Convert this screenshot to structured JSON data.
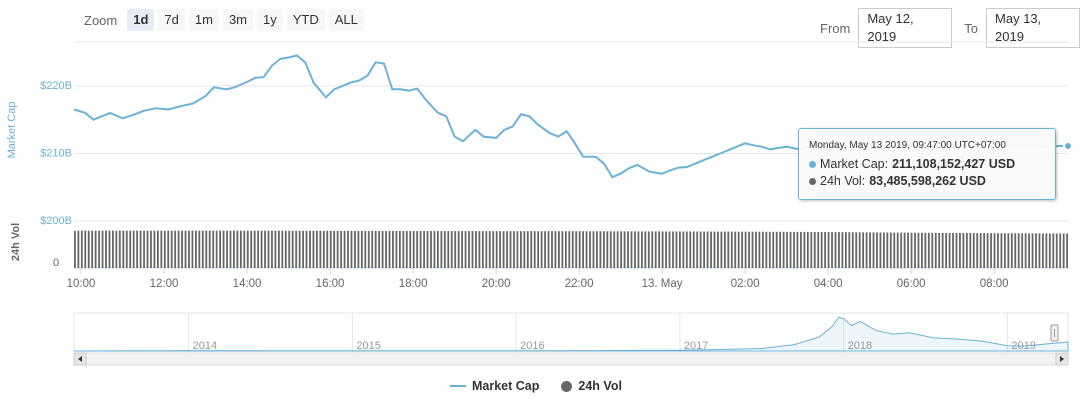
{
  "zoom": {
    "label": "Zoom",
    "buttons": [
      "1d",
      "7d",
      "1m",
      "3m",
      "1y",
      "YTD",
      "ALL"
    ],
    "active": "1d"
  },
  "range": {
    "from_label": "From",
    "from_value": "May 12, 2019",
    "to_label": "To",
    "to_value": "May 13, 2019"
  },
  "tooltip": {
    "date": "Monday, May 13 2019, 09:47:00 UTC+07:00",
    "market_cap_label": "Market Cap:",
    "market_cap_value": "211,108,152,427 USD",
    "volume_label": "24h Vol:",
    "volume_value": "83,485,598,262 USD"
  },
  "legend": {
    "market_cap": "Market Cap",
    "volume": "24h Vol"
  },
  "colors": {
    "market_cap": "#6cb2d6",
    "volume": "#666666"
  },
  "chart_data": {
    "type": "line",
    "ylabel": "Market Cap",
    "ylabel2": "24h Vol",
    "yticks": [
      "$220B",
      "$210B",
      "$200B"
    ],
    "ytick_values": [
      220,
      210,
      200
    ],
    "vol_ytick": "0",
    "ylim": [
      200,
      226.5
    ],
    "xticks": [
      "10:00",
      "12:00",
      "14:00",
      "16:00",
      "18:00",
      "20:00",
      "22:00",
      "13. May",
      "02:00",
      "04:00",
      "06:00",
      "08:00"
    ],
    "xtick_hours": [
      10,
      12,
      14,
      16,
      18,
      20,
      22,
      24,
      26,
      28,
      30,
      32
    ],
    "xlim_hours": [
      9.83,
      33.78
    ],
    "series": [
      {
        "name": "Market Cap",
        "unit": "$B",
        "hours": [
          9.83,
          10.1,
          10.3,
          10.5,
          10.7,
          11.0,
          11.3,
          11.5,
          11.8,
          12.1,
          12.4,
          12.7,
          13.0,
          13.2,
          13.5,
          13.7,
          14.0,
          14.2,
          14.4,
          14.6,
          14.8,
          15.0,
          15.2,
          15.4,
          15.6,
          15.9,
          16.1,
          16.3,
          16.5,
          16.7,
          16.9,
          17.1,
          17.3,
          17.5,
          17.7,
          17.9,
          18.1,
          18.3,
          18.6,
          18.8,
          19.0,
          19.2,
          19.5,
          19.7,
          20.0,
          20.2,
          20.4,
          20.6,
          20.8,
          21.0,
          21.3,
          21.5,
          21.7,
          21.9,
          22.1,
          22.4,
          22.6,
          22.8,
          23.0,
          23.2,
          23.4,
          23.7,
          24.0,
          24.2,
          24.4,
          24.6,
          24.8,
          25.0,
          25.2,
          25.4,
          25.6,
          25.8,
          26.0,
          26.2,
          26.4,
          26.6,
          26.8,
          27.0,
          27.3,
          27.6,
          27.9,
          28.2,
          28.5,
          28.8,
          29.1,
          29.4,
          29.7,
          30.0,
          30.3,
          30.6,
          30.9,
          31.2,
          31.5,
          31.8,
          32.1,
          32.4,
          32.7,
          33.0,
          33.3,
          33.55,
          33.78
        ],
        "values": [
          216.5,
          216.0,
          215.0,
          215.5,
          216.0,
          215.2,
          215.8,
          216.3,
          216.7,
          216.5,
          217.0,
          217.4,
          218.5,
          219.8,
          219.5,
          219.8,
          220.6,
          221.2,
          221.3,
          223.0,
          224.0,
          224.2,
          224.5,
          223.5,
          220.5,
          218.3,
          219.5,
          220.0,
          220.5,
          220.8,
          221.5,
          223.5,
          223.3,
          219.5,
          219.5,
          219.3,
          219.6,
          218.0,
          216.0,
          215.5,
          212.5,
          211.8,
          213.5,
          212.5,
          212.3,
          213.5,
          214.0,
          215.8,
          215.5,
          214.3,
          213.0,
          212.5,
          213.3,
          211.5,
          209.5,
          209.5,
          208.5,
          206.5,
          207.0,
          207.8,
          208.3,
          207.3,
          207.0,
          207.5,
          207.9,
          208.0,
          208.5,
          209.0,
          209.5,
          210.0,
          210.5,
          211.0,
          211.5,
          211.2,
          211.0,
          210.6,
          210.8,
          211.0,
          210.6,
          211.1,
          211.5,
          211.3,
          210.9,
          210.7,
          210.8,
          211.0,
          211.4,
          211.2,
          210.9,
          211.0,
          211.3,
          211.1,
          210.8,
          211.0,
          211.2,
          211.0,
          210.9,
          211.2,
          211.0,
          211.1,
          211.108
        ]
      },
      {
        "name": "24h Vol",
        "unit": "$B",
        "hours": [
          9.83,
          12.0,
          14.0,
          16.0,
          18.0,
          20.0,
          22.0,
          24.0,
          26.0,
          28.0,
          30.0,
          32.0,
          33.78
        ],
        "values": [
          90.5,
          90.3,
          90.4,
          90.0,
          89.5,
          89.3,
          89.0,
          88.5,
          88.0,
          87.0,
          85.5,
          84.3,
          83.49
        ]
      }
    ],
    "navigator": {
      "xticks": [
        "2014",
        "2015",
        "2016",
        "2017",
        "2018",
        "2019"
      ],
      "xtick_years": [
        2014,
        2015,
        2016,
        2017,
        2018,
        2019
      ],
      "xlim_years": [
        2013.3,
        2019.37
      ],
      "ylim": [
        0,
        850
      ],
      "years": [
        2013.3,
        2013.8,
        2014.0,
        2014.5,
        2015.0,
        2015.5,
        2016.0,
        2016.5,
        2017.0,
        2017.3,
        2017.5,
        2017.7,
        2017.85,
        2017.93,
        2017.97,
        2018.0,
        2018.05,
        2018.1,
        2018.2,
        2018.3,
        2018.4,
        2018.55,
        2018.7,
        2018.85,
        2019.0,
        2019.1,
        2019.25,
        2019.37
      ],
      "values": [
        1,
        8,
        10,
        6,
        4,
        5,
        7,
        10,
        18,
        40,
        60,
        150,
        330,
        580,
        800,
        760,
        600,
        700,
        480,
        400,
        430,
        310,
        280,
        230,
        125,
        115,
        170,
        211
      ]
    }
  }
}
